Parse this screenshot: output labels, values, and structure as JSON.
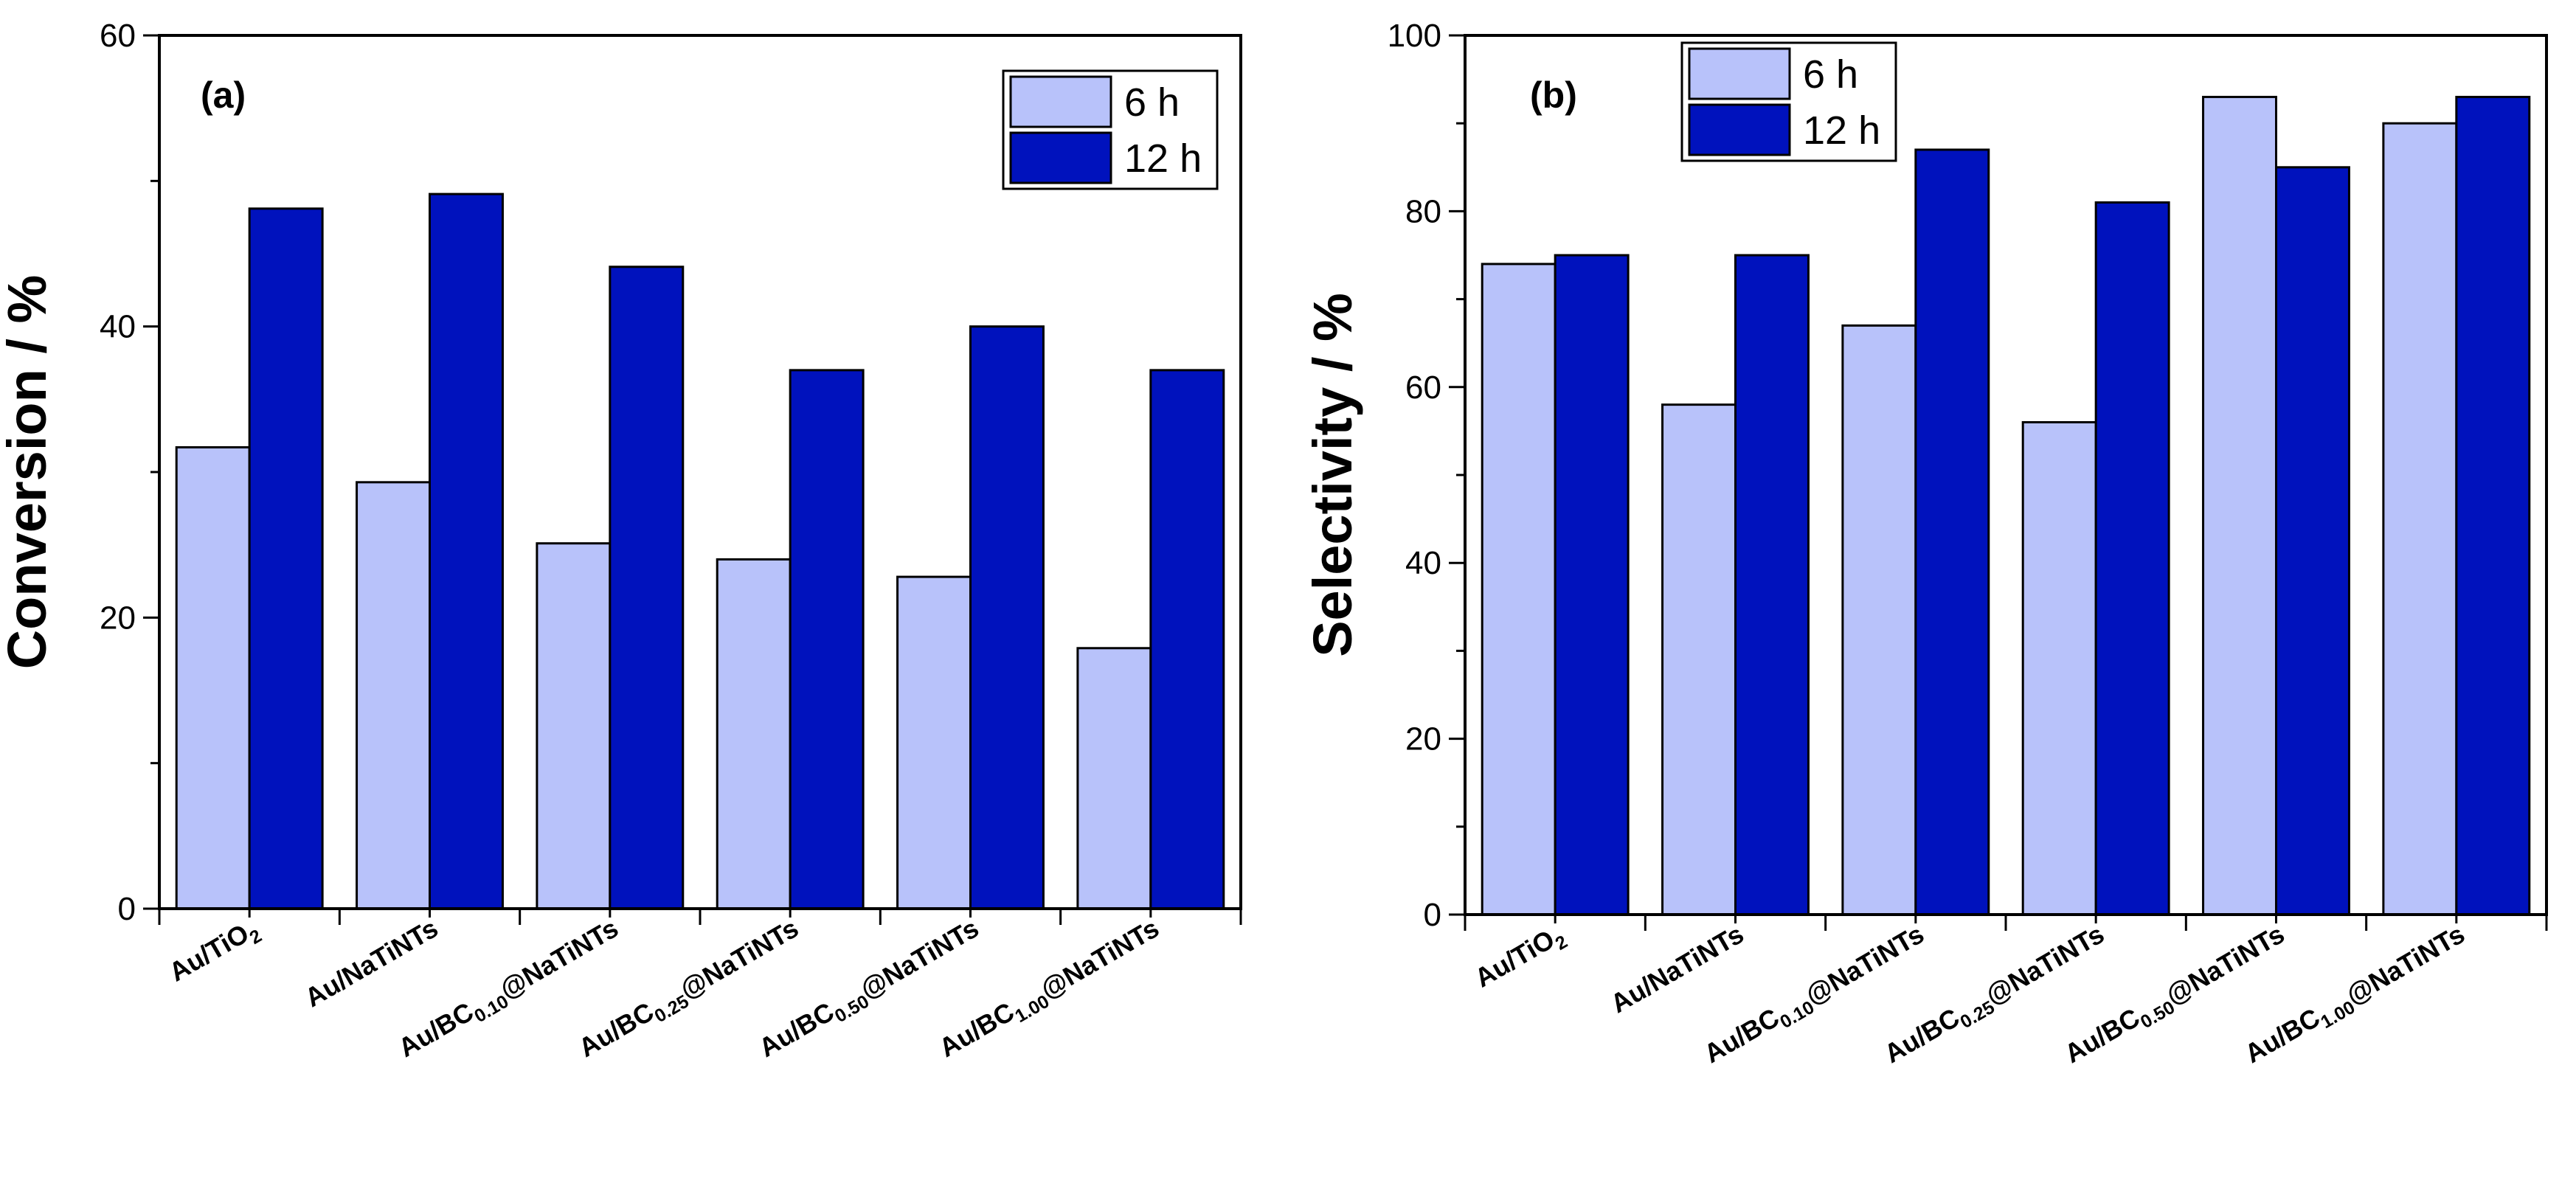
{
  "chart_data": [
    {
      "type": "bar",
      "panel_label": "(a)",
      "ylabel": "Conversion / %",
      "xlabel": "",
      "ylim": [
        0,
        60
      ],
      "yticks": [
        0,
        20,
        40,
        60
      ],
      "ytick_labels": [
        "0",
        "20",
        "40",
        "60"
      ],
      "grid": false,
      "legend_position": "top-right",
      "categories": [
        {
          "pre": "Au/TiO",
          "sub": "2",
          "post": ""
        },
        {
          "pre": "Au/NaTiNTs",
          "sub": "",
          "post": ""
        },
        {
          "pre": "Au/BC",
          "sub": "0.10",
          "post": "@NaTiNTs"
        },
        {
          "pre": "Au/BC",
          "sub": "0.25",
          "post": "@NaTiNTs"
        },
        {
          "pre": "Au/BC",
          "sub": "0.50",
          "post": "@NaTiNTs"
        },
        {
          "pre": "Au/BC",
          "sub": "1.00",
          "post": "@NaTiNTs"
        }
      ],
      "series": [
        {
          "name": "6 h",
          "color": "#b8c2fa",
          "values": [
            31.7,
            29.3,
            25.1,
            24.0,
            22.8,
            17.9
          ]
        },
        {
          "name": "12 h",
          "color": "#0012bd",
          "values": [
            48.1,
            49.1,
            44.1,
            37.0,
            40.0,
            37.0
          ]
        }
      ]
    },
    {
      "type": "bar",
      "panel_label": "(b)",
      "ylabel": "Selectivity / %",
      "xlabel": "",
      "ylim": [
        0,
        100
      ],
      "yticks": [
        0,
        20,
        40,
        60,
        80,
        100
      ],
      "ytick_labels": [
        "0",
        "20",
        "40",
        "60",
        "80",
        "100"
      ],
      "grid": false,
      "legend_position": "top-left",
      "categories": [
        {
          "pre": "Au/TiO",
          "sub": "2",
          "post": ""
        },
        {
          "pre": "Au/NaTiNTs",
          "sub": "",
          "post": ""
        },
        {
          "pre": "Au/BC",
          "sub": "0.10",
          "post": "@NaTiNTs"
        },
        {
          "pre": "Au/BC",
          "sub": "0.25",
          "post": "@NaTiNTs"
        },
        {
          "pre": "Au/BC",
          "sub": "0.50",
          "post": "@NaTiNTs"
        },
        {
          "pre": "Au/BC",
          "sub": "1.00",
          "post": "@NaTiNTs"
        }
      ],
      "series": [
        {
          "name": "6 h",
          "color": "#b8c2fa",
          "values": [
            74,
            58,
            67,
            56,
            93,
            90
          ]
        },
        {
          "name": "12 h",
          "color": "#0012bd",
          "values": [
            75,
            75,
            87,
            81,
            85,
            93
          ]
        }
      ]
    }
  ]
}
